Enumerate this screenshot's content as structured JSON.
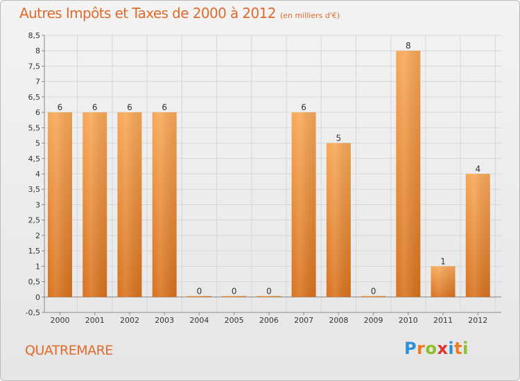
{
  "header": {
    "title": "Autres Impôts et Taxes de 2000 à 2012",
    "subtitle": "(en milliers d'€)"
  },
  "footer": {
    "commune": "QUATREMARE",
    "logo": [
      "P",
      "r",
      "o",
      "x",
      "i",
      "t",
      "i"
    ]
  },
  "colors": {
    "title": "#e06a2b",
    "bar_top": "#f7a857",
    "bar_bottom": "#d8721f",
    "grid": "#d6d6d6",
    "axis": "#888888",
    "text": "#333333"
  },
  "chart_data": {
    "type": "bar",
    "title": "Autres Impôts et Taxes de 2000 à 2012",
    "subtitle": "(en milliers d'€)",
    "categories": [
      "2000",
      "2001",
      "2002",
      "2003",
      "2004",
      "2005",
      "2006",
      "2007",
      "2008",
      "2009",
      "2010",
      "2011",
      "2012"
    ],
    "values": [
      6,
      6,
      6,
      6,
      0,
      0,
      0,
      6,
      5,
      0,
      8,
      1,
      4
    ],
    "data_labels": [
      "6",
      "6",
      "6",
      "6",
      "0",
      "0",
      "0",
      "6",
      "5",
      "0",
      "8",
      "1",
      "4"
    ],
    "ylim": [
      -0.5,
      8.5
    ],
    "yticks": [
      "-0,5",
      "0",
      "0,5",
      "1",
      "1,5",
      "2",
      "2,5",
      "3",
      "3,5",
      "4",
      "4,5",
      "5",
      "5,5",
      "6",
      "6,5",
      "7",
      "7,5",
      "8",
      "8,5"
    ],
    "ytick_values": [
      -0.5,
      0,
      0.5,
      1,
      1.5,
      2,
      2.5,
      3,
      3.5,
      4,
      4.5,
      5,
      5.5,
      6,
      6.5,
      7,
      7.5,
      8,
      8.5
    ],
    "grid": true,
    "xlabel": "",
    "ylabel": ""
  }
}
